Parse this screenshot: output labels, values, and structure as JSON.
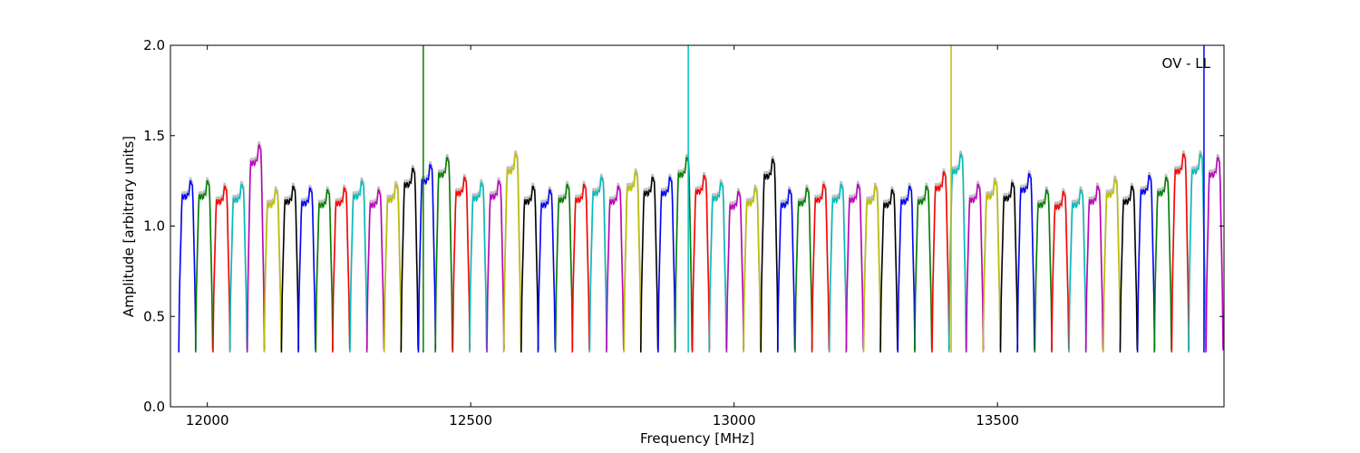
{
  "chart_data": {
    "type": "line",
    "title": "",
    "annotation": "OV - LL",
    "xlabel": "Frequency [MHz]",
    "ylabel": "Amplitude [arbitrary units]",
    "xlim": [
      11930,
      13930
    ],
    "ylim": [
      0.0,
      2.0
    ],
    "xticks": [
      12000,
      12500,
      13000,
      13500
    ],
    "xtick_labels": [
      "12000",
      "12500",
      "13000",
      "13500"
    ],
    "yticks": [
      0.0,
      0.5,
      1.0,
      1.5,
      2.0
    ],
    "ytick_labels": [
      "0.0",
      "0.5",
      "1.0",
      "1.5",
      "2.0"
    ],
    "grid": false,
    "legend": "none",
    "color_cycle": [
      "#0000ff",
      "#008000",
      "#ff0000",
      "#00bfbf",
      "#bf00bf",
      "#bfbf00",
      "#000000"
    ],
    "reference_color": "#c0c0c0",
    "channel_width_mhz": 32.5,
    "channel_centers_mhz": [
      11962,
      11994,
      12027,
      12059,
      12092,
      12124,
      12157,
      12189,
      12222,
      12254,
      12287,
      12319,
      12352,
      12384,
      12417,
      12449,
      12482,
      12514,
      12547,
      12579,
      12612,
      12644,
      12677,
      12709,
      12742,
      12774,
      12807,
      12839,
      12872,
      12904,
      12937,
      12969,
      13002,
      13034,
      13067,
      13099,
      13132,
      13164,
      13197,
      13229,
      13262,
      13294,
      13327,
      13359,
      13392,
      13424,
      13457,
      13489,
      13522,
      13554,
      13587,
      13619,
      13652,
      13684,
      13717,
      13749,
      13782,
      13814,
      13847,
      13879,
      13912
    ],
    "channel_peak_amplitude": [
      1.25,
      1.25,
      1.22,
      1.23,
      1.45,
      1.2,
      1.22,
      1.21,
      1.2,
      1.21,
      1.25,
      1.2,
      1.23,
      1.32,
      1.34,
      1.38,
      1.27,
      1.24,
      1.25,
      1.4,
      1.22,
      1.2,
      1.23,
      1.23,
      1.27,
      1.22,
      1.3,
      1.27,
      1.27,
      1.38,
      1.28,
      1.24,
      1.19,
      1.21,
      1.37,
      1.2,
      1.21,
      1.23,
      1.23,
      1.23,
      1.22,
      1.2,
      1.22,
      1.22,
      1.3,
      1.4,
      1.23,
      1.25,
      1.24,
      1.29,
      1.2,
      1.19,
      1.2,
      1.22,
      1.26,
      1.22,
      1.28,
      1.27,
      1.4,
      1.4,
      1.38
    ],
    "channel_min_amplitude": 0.3,
    "spikes": [
      {
        "x": 12410,
        "y": 2.0,
        "color": "#008000"
      },
      {
        "x": 12913,
        "y": 2.0,
        "color": "#00bfbf"
      },
      {
        "x": 13412,
        "y": 2.0,
        "color": "#bfbf00"
      },
      {
        "x": 13892,
        "y": 2.0,
        "color": "#0000ff"
      }
    ]
  }
}
